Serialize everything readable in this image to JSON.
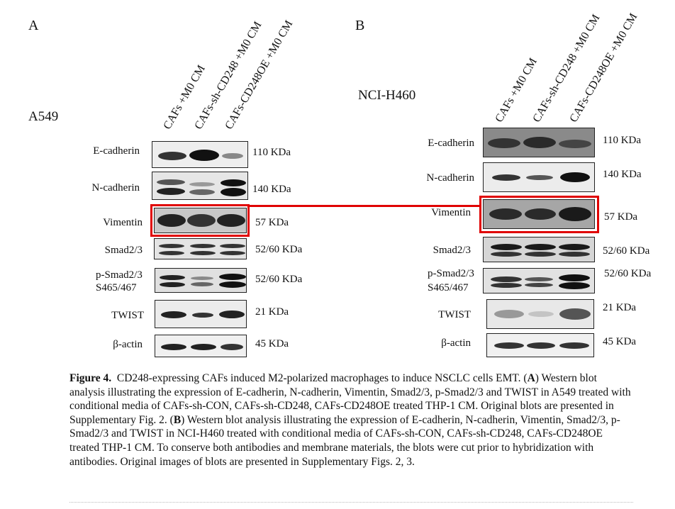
{
  "panel_a": {
    "letter": "A",
    "cell_line": "A549",
    "lanes": [
      "CAFs +M0 CM",
      "CAFs-sh-CD248 +M0 CM",
      "CAFs-CD248OE +M0 CM"
    ],
    "rows": [
      {
        "protein": "E-cadherin",
        "kda": "110 KDa"
      },
      {
        "protein": "N-cadherin",
        "kda": "140 KDa"
      },
      {
        "protein": "Vimentin",
        "kda": "57 KDa"
      },
      {
        "protein": "Smad2/3",
        "kda": "52/60 KDa"
      },
      {
        "protein_line1": "p-Smad2/3",
        "protein_line2": "S465/467",
        "kda": "52/60 KDa"
      },
      {
        "protein": "TWIST",
        "kda": "21 KDa"
      },
      {
        "protein": "β-actin",
        "kda": "45 KDa"
      }
    ]
  },
  "panel_b": {
    "letter": "B",
    "cell_line": "NCI-H460",
    "lanes": [
      "CAFs +M0 CM",
      "CAFs-sh-CD248 +M0 CM",
      "CAFs-CD248OE +M0 CM"
    ],
    "rows": [
      {
        "protein": "E-cadherin",
        "kda": "110 KDa"
      },
      {
        "protein": "N-cadherin",
        "kda": "140 KDa"
      },
      {
        "protein": "Vimentin",
        "kda": "57 KDa"
      },
      {
        "protein": "Smad2/3",
        "kda": "52/60 KDa"
      },
      {
        "protein_line1": "p-Smad2/3",
        "protein_line2": "S465/467",
        "kda": "52/60 KDa"
      },
      {
        "protein": "TWIST",
        "kda": "21 KDa"
      },
      {
        "protein": "β-actin",
        "kda": "45 KDa"
      }
    ]
  },
  "caption": {
    "figure_label": "Figure 4.",
    "title": "CD248-expressing CAFs induced M2-polarized macrophages to induce NSCLC cells EMT. (",
    "a_letter": "A",
    "part_a": ") Western blot analysis illustrating the expression of E-cadherin, N-cadherin, Vimentin, Smad2/3, p-Smad2/3 and TWIST in A549 treated with conditional media of CAFs-sh-CON, CAFs-sh-CD248, CAFs-CD248OE treated THP-1 CM. Original blots are presented in Supplementary Fig. 2. (",
    "b_letter": "B",
    "part_b": ") Western blot analysis illustrating the expression of E-cadherin, N-cadherin, Vimentin, Smad2/3, p-Smad2/3 and TWIST in NCI-H460 treated with conditional media of CAFs-sh-CON, CAFs-sh-CD248, CAFs-CD248OE treated THP-1 CM. To conserve both antibodies and membrane materials, the blots were cut prior to hybridization with antibodies. Original images of blots are presented in Supplementary Figs. 2, 3."
  },
  "colors": {
    "highlight": "#e00000",
    "band": "#1a1a1a"
  }
}
